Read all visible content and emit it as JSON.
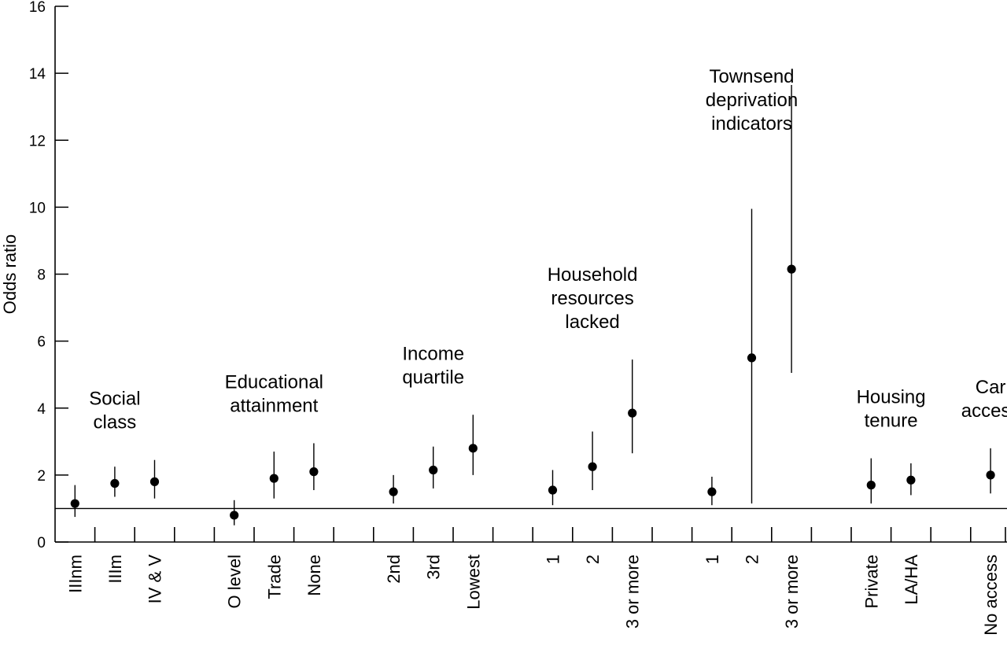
{
  "chart_data": {
    "type": "scatter",
    "title": "",
    "xlabel": "",
    "ylabel": "Odds ratio",
    "ylim": [
      0,
      16
    ],
    "yticks": [
      0,
      2,
      4,
      6,
      8,
      10,
      12,
      14,
      16
    ],
    "reference_line": 1,
    "grid": false,
    "legend": "none",
    "groups": [
      {
        "label": [
          "Social",
          "class"
        ],
        "points": [
          {
            "category": "IIInm",
            "or": 1.15,
            "lower": 0.75,
            "upper": 1.7
          },
          {
            "category": "IIIm",
            "or": 1.75,
            "lower": 1.35,
            "upper": 2.25
          },
          {
            "category": "IV & V",
            "or": 1.8,
            "lower": 1.3,
            "upper": 2.45
          }
        ]
      },
      {
        "label": [
          "Educational",
          "attainment"
        ],
        "points": [
          {
            "category": "O level",
            "or": 0.8,
            "lower": 0.5,
            "upper": 1.25
          },
          {
            "category": "Trade",
            "or": 1.9,
            "lower": 1.3,
            "upper": 2.7
          },
          {
            "category": "None",
            "or": 2.1,
            "lower": 1.55,
            "upper": 2.95
          }
        ]
      },
      {
        "label": [
          "Income",
          "quartile"
        ],
        "points": [
          {
            "category": "2nd",
            "or": 1.5,
            "lower": 1.15,
            "upper": 2.0
          },
          {
            "category": "3rd",
            "or": 2.15,
            "lower": 1.6,
            "upper": 2.85
          },
          {
            "category": "Lowest",
            "or": 2.8,
            "lower": 2.0,
            "upper": 3.8
          }
        ]
      },
      {
        "label": [
          "Household",
          "resources",
          "lacked"
        ],
        "points": [
          {
            "category": "1",
            "or": 1.55,
            "lower": 1.1,
            "upper": 2.15
          },
          {
            "category": "2",
            "or": 2.25,
            "lower": 1.55,
            "upper": 3.3
          },
          {
            "category": "3 or more",
            "or": 3.85,
            "lower": 2.65,
            "upper": 5.45
          }
        ]
      },
      {
        "label": [
          "Townsend",
          "deprivation",
          "indicators"
        ],
        "points": [
          {
            "category": "1",
            "or": 1.5,
            "lower": 1.1,
            "upper": 1.95
          },
          {
            "category": "2",
            "or": 5.5,
            "lower": 1.15,
            "upper": 9.95
          },
          {
            "category": "3 or more",
            "or": 8.15,
            "lower": 5.05,
            "upper": 13.65
          }
        ]
      },
      {
        "label": [
          "Housing",
          "tenure"
        ],
        "points": [
          {
            "category": "Private",
            "or": 1.7,
            "lower": 1.15,
            "upper": 2.5
          },
          {
            "category": "LA/HA",
            "or": 1.85,
            "lower": 1.4,
            "upper": 2.35
          }
        ]
      },
      {
        "label": [
          "Car",
          "access"
        ],
        "points": [
          {
            "category": "No access",
            "or": 2.0,
            "lower": 1.45,
            "upper": 2.8
          }
        ]
      }
    ]
  }
}
